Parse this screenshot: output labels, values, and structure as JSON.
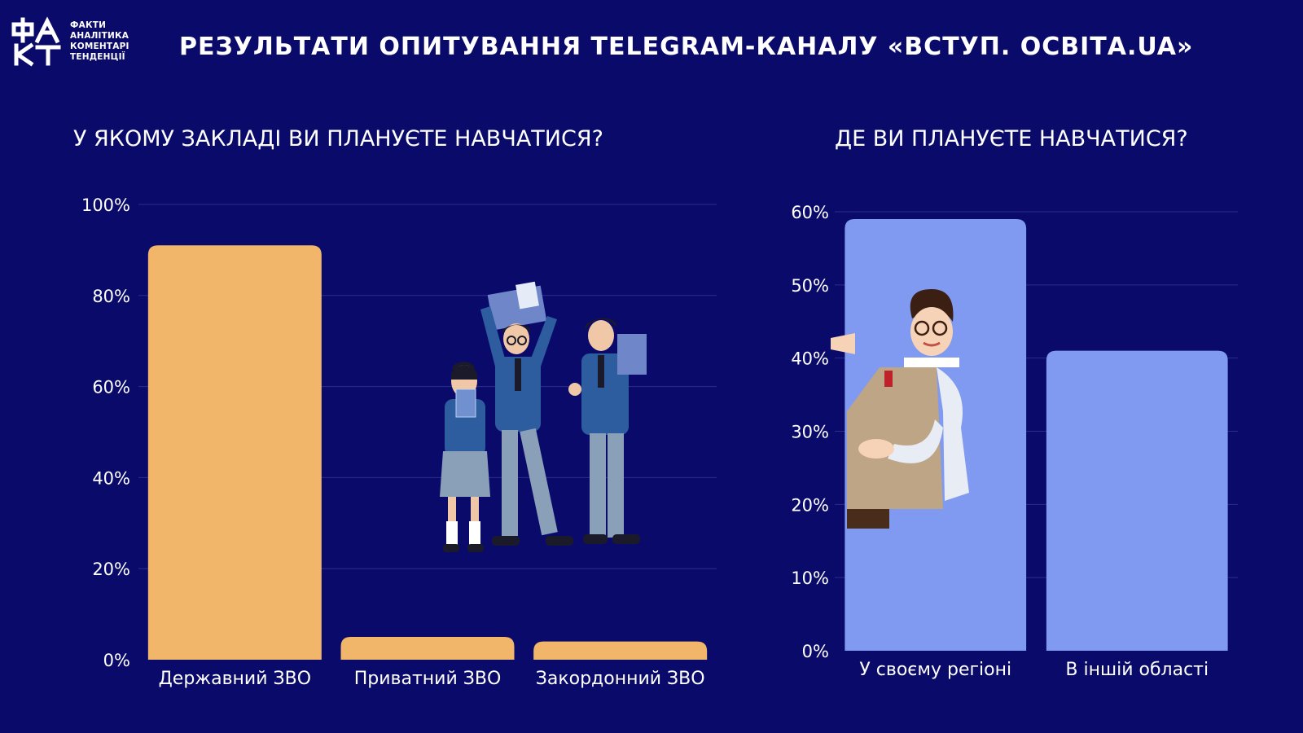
{
  "logo": {
    "mark": "ФАКТ",
    "lines": [
      "ФАКТИ",
      "АНАЛІТИКА",
      "КОМЕНТАРІ",
      "ТЕНДЕНЦІЇ"
    ]
  },
  "header": {
    "title": "РЕЗУЛЬТАТИ ОПИТУВАННЯ TELEGRAM-КАНАЛУ «ВСТУП. ОСВІТА.UA»"
  },
  "colors": {
    "background": "#0a0a6a",
    "bar_left": "#f2b66a",
    "bar_right": "#7f9af0",
    "grid": "#2a2e8a"
  },
  "chart_data": [
    {
      "type": "bar",
      "title": "У ЯКОМУ ЗАКЛАДІ ВИ ПЛАНУЄТЕ НАВЧАТИСЯ?",
      "categories": [
        "Державний ЗВО",
        "Приватний ЗВО",
        "Закордонний ЗВО"
      ],
      "values": [
        91,
        5,
        4
      ],
      "ylim": [
        0,
        100
      ],
      "yticks": [
        "0%",
        "20%",
        "40%",
        "60%",
        "80%",
        "100%"
      ],
      "grid": true,
      "xlabel": "",
      "ylabel": ""
    },
    {
      "type": "bar",
      "title": "ДЕ ВИ ПЛАНУЄТЕ НАВЧАТИСЯ?",
      "categories": [
        "У своєму регіоні",
        "В іншій області"
      ],
      "values": [
        59,
        41
      ],
      "ylim": [
        0,
        60
      ],
      "yticks": [
        "0%",
        "10%",
        "20%",
        "30%",
        "40%",
        "50%",
        "60%"
      ],
      "grid": true,
      "xlabel": "",
      "ylabel": ""
    }
  ],
  "illustrations": [
    "students-group-illustration",
    "teacher-pointing-illustration"
  ]
}
